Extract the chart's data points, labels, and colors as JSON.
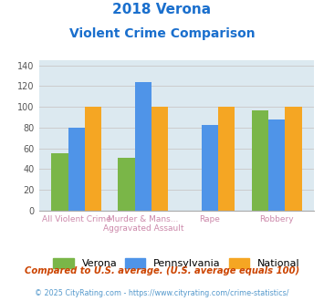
{
  "title_line1": "2018 Verona",
  "title_line2": "Violent Crime Comparison",
  "title_color": "#1a6fcd",
  "verona": [
    55,
    51,
    0,
    97
  ],
  "pennsylvania": [
    80,
    124,
    83,
    88
  ],
  "national": [
    100,
    100,
    100,
    100
  ],
  "verona_color": "#7ab648",
  "pennsylvania_color": "#4f94e8",
  "national_color": "#f5a623",
  "ylim": [
    0,
    145
  ],
  "yticks": [
    0,
    20,
    40,
    60,
    80,
    100,
    120,
    140
  ],
  "grid_color": "#cccccc",
  "plot_bg": "#dce9f0",
  "row1_labels": [
    "",
    "Murder & Mans...",
    "",
    ""
  ],
  "row2_labels": [
    "All Violent Crime",
    "Aggravated Assault",
    "Rape",
    "Robbery"
  ],
  "legend_labels": [
    "Verona",
    "Pennsylvania",
    "National"
  ],
  "footnote1": "Compared to U.S. average. (U.S. average equals 100)",
  "footnote2": "© 2025 CityRating.com - https://www.cityrating.com/crime-statistics/",
  "footnote1_color": "#cc4400",
  "footnote2_color": "#5599cc",
  "xlabel_color": "#cc88aa"
}
